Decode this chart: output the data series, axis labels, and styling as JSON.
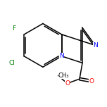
{
  "background_color": "#ffffff",
  "bond_color": "#000000",
  "atom_colors": {
    "N": "#0000ff",
    "O": "#ff0000",
    "F": "#008000",
    "Cl": "#008000",
    "C": "#000000"
  },
  "figsize": [
    1.52,
    1.52
  ],
  "dpi": 100
}
